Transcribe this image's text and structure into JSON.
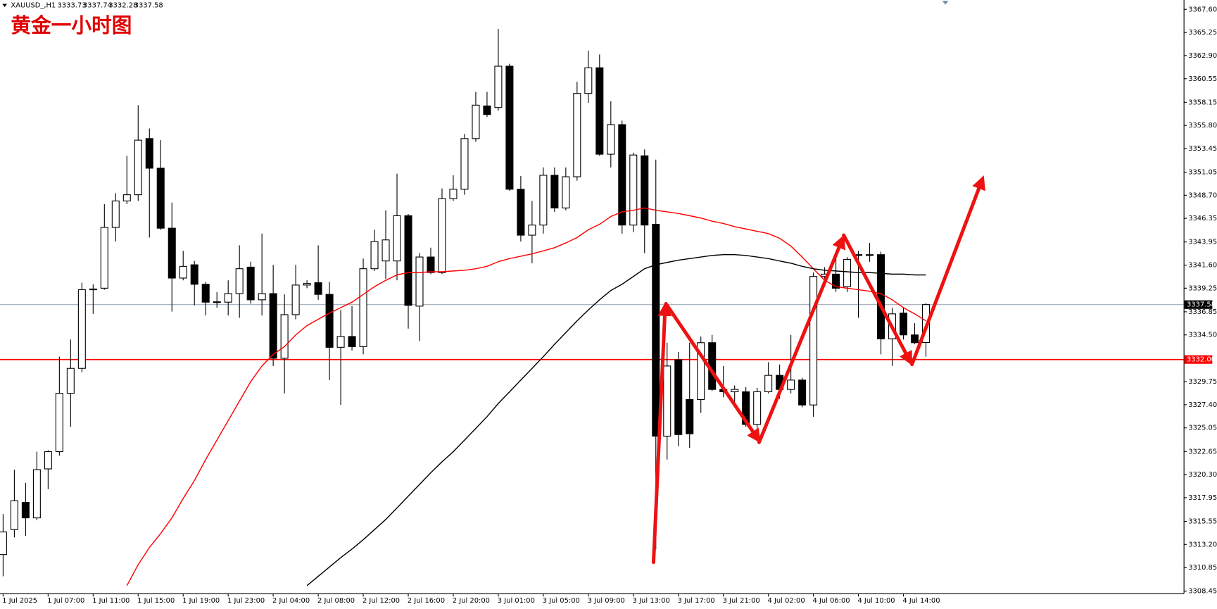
{
  "chart_data": {
    "type": "candlestick",
    "symbol": "XAUUSD_,H1",
    "annotation": "黄金一小时图",
    "categories": [
      "1 Jul 2025",
      null,
      null,
      null,
      "1 Jul 07:00",
      null,
      null,
      null,
      "1 Jul 11:00",
      null,
      null,
      null,
      "1 Jul 15:00",
      null,
      null,
      null,
      "1 Jul 19:00",
      null,
      null,
      null,
      "1 Jul 23:00",
      null,
      null,
      null,
      "2 Jul 04:00",
      null,
      null,
      null,
      "2 Jul 08:00",
      null,
      null,
      null,
      "2 Jul 12:00",
      null,
      null,
      null,
      "2 Jul 16:00",
      null,
      null,
      null,
      "2 Jul 20:00",
      null,
      null,
      null,
      "3 Jul 01:00",
      null,
      null,
      null,
      "3 Jul 05:00",
      null,
      null,
      null,
      "3 Jul 09:00",
      null,
      null,
      null,
      "3 Jul 13:00",
      null,
      null,
      null,
      "3 Jul 17:00",
      null,
      null,
      null,
      "3 Jul 21:00",
      null,
      null,
      null,
      "4 Jul 02:00",
      null,
      null,
      null,
      "4 Jul 06:00",
      null,
      null,
      null,
      "4 Jul 10:00",
      null,
      null,
      null,
      "4 Jul 14:00",
      null,
      null
    ],
    "open": [
      3312.17,
      3314.71,
      3317.48,
      3315.9,
      3320.88,
      3322.63,
      3328.56,
      3331.1,
      3339.17,
      3339.25,
      3345.43,
      3348.12,
      3348.75,
      3354.46,
      3351.45,
      3345.35,
      3340.28,
      3341.63,
      3339.65,
      3337.83,
      3337.83,
      3338.7,
      3341.39,
      3338.07,
      3338.7,
      3332.13,
      3336.56,
      3339.57,
      3339.81,
      3338.62,
      3333.24,
      3334.34,
      3333.31,
      3341.23,
      3342.02,
      3342.02,
      3346.62,
      3337.43,
      3342.42,
      3340.84,
      3348.36,
      3349.31,
      3354.46,
      3357.78,
      3357.62,
      3361.82,
      3349.31,
      3344.64,
      3345.67,
      3350.73,
      3347.41,
      3350.58,
      3359.05,
      3361.66,
      3352.87,
      3355.88,
      3345.67,
      3352.71,
      3345.75,
      3324.21,
      3331.97,
      3327.93,
      3327.93,
      3333.71,
      3328.96,
      3328.72,
      3328.72,
      3325.4,
      3328.72,
      3330.39,
      3328.96,
      3329.91,
      3327.38,
      3340.44,
      3340.68,
      3339.41,
      3342.66,
      3342.66,
      3342.66,
      3334.11,
      3336.72,
      3334.5,
      3333.73
    ],
    "high": [
      3316.29,
      3320.8,
      3319.46,
      3322.63,
      3322.78,
      3332.29,
      3334.03,
      3339.81,
      3339.65,
      3347.8,
      3348.91,
      3352.71,
      3357.86,
      3355.49,
      3354.3,
      3347.96,
      3343.05,
      3342.02,
      3339.89,
      3338.86,
      3340.05,
      3343.61,
      3341.95,
      3344.8,
      3341.63,
      3338.62,
      3341.63,
      3340.05,
      3343.61,
      3339.89,
      3337.04,
      3337.43,
      3342.26,
      3345.19,
      3347.17,
      3350.89,
      3346.78,
      3342.82,
      3343.37,
      3349.39,
      3350.73,
      3354.93,
      3359.21,
      3359.21,
      3365.62,
      3362.06,
      3350.66,
      3348.12,
      3351.53,
      3351.53,
      3351.53,
      3360.24,
      3363.4,
      3363.01,
      3358.26,
      3356.28,
      3353.03,
      3353.35,
      3352.32,
      3333.71,
      3332.76,
      3333.71,
      3334.34,
      3334.5,
      3331.34,
      3329.36,
      3329.2,
      3329.12,
      3331.73,
      3331.49,
      3334.5,
      3330.15,
      3340.84,
      3341.39,
      3342.42,
      3342.42,
      3343.05,
      3343.85,
      3342.97,
      3337.27,
      3337.27,
      3335.69,
      3337.74
    ],
    "low": [
      3309.96,
      3313.92,
      3314.07,
      3315.66,
      3318.82,
      3322.23,
      3325.16,
      3330.7,
      3336.64,
      3339.1,
      3344.0,
      3347.8,
      3348.12,
      3344.4,
      3345.19,
      3336.88,
      3340.05,
      3337.51,
      3336.48,
      3337.27,
      3336.48,
      3336.24,
      3337.67,
      3336.48,
      3331.34,
      3328.56,
      3336.09,
      3339.25,
      3338.07,
      3329.91,
      3327.38,
      3332.92,
      3332.52,
      3341.0,
      3340.2,
      3340.05,
      3335.14,
      3333.87,
      3340.68,
      3340.68,
      3348.12,
      3348.75,
      3354.14,
      3356.67,
      3357.31,
      3349.15,
      3344.0,
      3341.79,
      3344.8,
      3347.01,
      3347.17,
      3350.18,
      3358.1,
      3352.71,
      3351.53,
      3344.8,
      3344.95,
      3342.82,
      3312.73,
      3321.83,
      3323.18,
      3323.02,
      3326.58,
      3328.8,
      3328.17,
      3327.38,
      3325.16,
      3325.0,
      3328.56,
      3328.01,
      3328.56,
      3327.14,
      3326.19,
      3340.05,
      3338.86,
      3338.86,
      3336.24,
      3341.94,
      3332.52,
      3331.34,
      3334.03,
      3333.55,
      3332.28
    ],
    "close": [
      3314.47,
      3317.64,
      3315.9,
      3320.8,
      3322.63,
      3328.56,
      3331.1,
      3339.1,
      3339.13,
      3345.43,
      3348.12,
      3348.75,
      3354.3,
      3351.45,
      3345.35,
      3340.28,
      3341.47,
      3339.65,
      3337.83,
      3337.87,
      3338.7,
      3341.23,
      3338.07,
      3338.7,
      3332.13,
      3336.56,
      3339.57,
      3339.73,
      3338.62,
      3333.24,
      3334.34,
      3333.31,
      3341.23,
      3344.0,
      3344.16,
      3346.62,
      3337.51,
      3342.42,
      3340.84,
      3348.36,
      3349.31,
      3354.46,
      3357.86,
      3356.91,
      3361.82,
      3349.31,
      3344.64,
      3345.67,
      3350.73,
      3347.41,
      3350.58,
      3359.05,
      3361.66,
      3352.87,
      3355.88,
      3345.67,
      3352.79,
      3345.67,
      3324.21,
      3331.34,
      3324.37,
      3324.45,
      3333.71,
      3328.96,
      3328.72,
      3328.96,
      3325.4,
      3328.72,
      3330.39,
      3328.96,
      3329.91,
      3327.38,
      3340.44,
      3340.68,
      3339.25,
      3342.18,
      3342.58,
      3342.62,
      3334.11,
      3336.64,
      3334.5,
      3333.71,
      3337.58
    ],
    "bull_color": "#ffffff",
    "bear_color": "#000000",
    "outline_color": "#000000",
    "moving_averages": [
      {
        "color": "#ff0000",
        "values": [
          null,
          null,
          null,
          null,
          null,
          null,
          null,
          null,
          null,
          null,
          null,
          3309.01,
          3311.14,
          3312.89,
          3314.31,
          3315.9,
          3317.87,
          3319.7,
          3321.83,
          3323.81,
          3325.79,
          3327.77,
          3329.75,
          3331.34,
          3332.52,
          3333.31,
          3334.5,
          3335.45,
          3336.09,
          3336.72,
          3337.27,
          3337.83,
          3338.62,
          3339.41,
          3340.05,
          3340.6,
          3340.84,
          3340.84,
          3340.92,
          3340.92,
          3341.0,
          3341.07,
          3341.23,
          3341.47,
          3341.95,
          3342.26,
          3342.5,
          3342.74,
          3343.05,
          3343.37,
          3343.85,
          3344.4,
          3345.19,
          3345.75,
          3346.54,
          3347.01,
          3347.17,
          3347.41,
          3347.17,
          3347.01,
          3346.85,
          3346.62,
          3346.38,
          3346.06,
          3345.83,
          3345.51,
          3345.27,
          3345.03,
          3344.8,
          3344.32,
          3343.53,
          3342.42,
          3341.23,
          3340.05,
          3339.41,
          3339.25,
          3339.1,
          3338.94,
          3338.7,
          3338.07,
          3337.27,
          3336.64,
          3335.93
        ]
      },
      {
        "color": "#000000",
        "values": [
          null,
          null,
          null,
          null,
          null,
          null,
          null,
          null,
          null,
          null,
          null,
          null,
          null,
          null,
          null,
          null,
          null,
          null,
          null,
          null,
          null,
          null,
          null,
          null,
          null,
          null,
          null,
          3309.01,
          3309.96,
          3310.91,
          3311.86,
          3312.73,
          3313.68,
          3314.71,
          3315.74,
          3316.92,
          3318.11,
          3319.3,
          3320.49,
          3321.6,
          3322.63,
          3323.81,
          3325.0,
          3326.19,
          3327.53,
          3328.72,
          3329.91,
          3331.1,
          3332.29,
          3333.55,
          3334.74,
          3335.93,
          3337.04,
          3338.07,
          3339.02,
          3339.65,
          3340.44,
          3341.23,
          3341.63,
          3341.87,
          3342.1,
          3342.26,
          3342.42,
          3342.58,
          3342.66,
          3342.66,
          3342.58,
          3342.42,
          3342.26,
          3342.02,
          3341.79,
          3341.47,
          3341.23,
          3341.07,
          3341.0,
          3340.92,
          3340.84,
          3340.84,
          3340.76,
          3340.68,
          3340.68,
          3340.6,
          3340.6
        ]
      }
    ],
    "hline": {
      "value": 3332.0,
      "label": "3332.00",
      "color": "#ff0000"
    },
    "price_line_color": "#a0acb8",
    "ylim": [
      3308.22,
      3368.55
    ],
    "yticks": [
      {
        "value": 3367.6,
        "label": "3367.60"
      },
      3365.25,
      {
        "value": 3362.9,
        "label": "3362.90"
      },
      3360.55,
      3358.15,
      {
        "value": 3355.8,
        "label": "3355.80"
      },
      3353.45,
      3351.05,
      {
        "value": 3348.7,
        "label": "3348.70"
      },
      3346.35,
      3343.95,
      {
        "value": 3341.6,
        "label": "3341.60"
      },
      3339.25,
      3336.85,
      {
        "value": 3334.5,
        "label": "3334.50"
      },
      {
        "value": 3329.75,
        "label": "3329.75"
      },
      {
        "value": 3327.4,
        "label": "3327.40"
      },
      3325.05,
      3322.65,
      {
        "value": 3320.3,
        "label": "3320.30"
      },
      3317.95,
      3315.55,
      {
        "value": 3313.2,
        "label": "3313.20"
      },
      3310.85,
      3308.45
    ]
  }
}
